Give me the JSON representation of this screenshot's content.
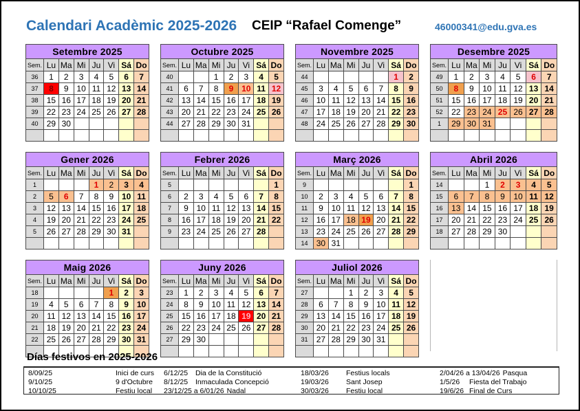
{
  "header": {
    "title": "Calendari Acadèmic 2025-2026",
    "school": "CEIP “Rafael Comenge”",
    "email": "46000341@edu.gva.es"
  },
  "colors": {
    "accent_blue": "#2E74B5",
    "month_header_bg": "#CC99FF",
    "week_col_bg": "#DBDBDB",
    "saturday_bg": "#FFFFCC",
    "sunday_bg": "#FBD5B4",
    "vacation_bg": "#FAC090",
    "festiu_bg": "#F0A04E",
    "pink_bg": "#F6C3CC",
    "red_bg": "#FF0000",
    "red_text": "#E00000",
    "dark_red_text": "#800000",
    "pink_text": "#FFB3C0"
  },
  "day_headers": [
    "Sem.",
    "Lu",
    "Ma",
    "Mi",
    "Ju",
    "Vi",
    "Sá",
    "Do"
  ],
  "months": [
    {
      "title": "Setembre 2025",
      "weeks": [
        {
          "sem": "36",
          "days": [
            "1",
            "2",
            "3",
            "4",
            "5",
            "6",
            "7"
          ]
        },
        {
          "sem": "37",
          "days": [
            {
              "t": "8",
              "bg": "red",
              "fg": "darkred"
            },
            "9",
            "10",
            "11",
            "12",
            "13",
            "14"
          ]
        },
        {
          "sem": "38",
          "days": [
            "15",
            "16",
            "17",
            "18",
            "19",
            "20",
            "21"
          ]
        },
        {
          "sem": "39",
          "days": [
            "22",
            "23",
            "24",
            "25",
            "26",
            "27",
            "28"
          ]
        },
        {
          "sem": "40",
          "days": [
            "29",
            "30",
            "",
            "",
            "",
            "",
            ""
          ]
        },
        {
          "sem": "",
          "days": [
            "",
            "",
            "",
            "",
            "",
            "",
            ""
          ]
        }
      ]
    },
    {
      "title": "Octubre 2025",
      "weeks": [
        {
          "sem": "40",
          "days": [
            "",
            "",
            "1",
            "2",
            "3",
            "4",
            "5"
          ]
        },
        {
          "sem": "41",
          "days": [
            "6",
            "7",
            "8",
            {
              "t": "9",
              "bg": "fest",
              "fg": "red"
            },
            {
              "t": "10",
              "bg": "vac",
              "fg": "red"
            },
            "11",
            {
              "t": "12",
              "bg": "pink",
              "fg": "red"
            }
          ]
        },
        {
          "sem": "42",
          "days": [
            "13",
            "14",
            "15",
            "16",
            "17",
            "18",
            "19"
          ]
        },
        {
          "sem": "43",
          "days": [
            "20",
            "21",
            "22",
            "23",
            "24",
            "25",
            "26"
          ]
        },
        {
          "sem": "44",
          "days": [
            "27",
            "28",
            "29",
            "30",
            "31",
            "",
            ""
          ]
        },
        {
          "sem": "",
          "days": [
            "",
            "",
            "",
            "",
            "",
            "",
            ""
          ]
        }
      ]
    },
    {
      "title": "Novembre 2025",
      "weeks": [
        {
          "sem": "44",
          "days": [
            "",
            "",
            "",
            "",
            "",
            {
              "t": "1",
              "bg": "pink",
              "fg": "red"
            },
            "2"
          ]
        },
        {
          "sem": "45",
          "days": [
            "3",
            "4",
            "5",
            "6",
            "7",
            "8",
            "9"
          ]
        },
        {
          "sem": "46",
          "days": [
            "10",
            "11",
            "12",
            "13",
            "14",
            "15",
            "16"
          ]
        },
        {
          "sem": "47",
          "days": [
            "17",
            "18",
            "19",
            "20",
            "21",
            "22",
            "23"
          ]
        },
        {
          "sem": "48",
          "days": [
            "24",
            "25",
            "26",
            "27",
            "28",
            "29",
            "30"
          ]
        },
        {
          "sem": "",
          "days": [
            "",
            "",
            "",
            "",
            "",
            "",
            ""
          ]
        }
      ]
    },
    {
      "title": "Desembre 2025",
      "weeks": [
        {
          "sem": "49",
          "days": [
            "1",
            "2",
            "3",
            "4",
            "5",
            {
              "t": "6",
              "bg": "pink",
              "fg": "red"
            },
            "7"
          ]
        },
        {
          "sem": "50",
          "days": [
            {
              "t": "8",
              "bg": "fest",
              "fg": "red"
            },
            "9",
            "10",
            "11",
            "12",
            "13",
            "14"
          ]
        },
        {
          "sem": "51",
          "days": [
            "15",
            "16",
            "17",
            "18",
            "19",
            "20",
            "21"
          ]
        },
        {
          "sem": "52",
          "days": [
            "22",
            {
              "t": "23",
              "bg": "vac"
            },
            {
              "t": "24",
              "bg": "vac"
            },
            {
              "t": "25",
              "bg": "vac",
              "fg": "red"
            },
            {
              "t": "26",
              "bg": "vac"
            },
            {
              "t": "27",
              "bg": "vac"
            },
            {
              "t": "28",
              "bg": "vac"
            }
          ]
        },
        {
          "sem": "1",
          "days": [
            {
              "t": "29",
              "bg": "vac"
            },
            {
              "t": "30",
              "bg": "vac"
            },
            {
              "t": "31",
              "bg": "vac"
            },
            "",
            "",
            "",
            ""
          ]
        },
        {
          "sem": "",
          "days": [
            "",
            "",
            "",
            "",
            "",
            "",
            ""
          ]
        }
      ]
    },
    {
      "title": "Gener 2026",
      "weeks": [
        {
          "sem": "1",
          "days": [
            "",
            "",
            "",
            {
              "t": "1",
              "bg": "vac",
              "fg": "red"
            },
            {
              "t": "2",
              "bg": "vac"
            },
            {
              "t": "3",
              "bg": "vac"
            },
            {
              "t": "4",
              "bg": "vac"
            }
          ]
        },
        {
          "sem": "2",
          "days": [
            {
              "t": "5",
              "bg": "vac"
            },
            {
              "t": "6",
              "bg": "vac",
              "fg": "red"
            },
            "7",
            "8",
            "9",
            "10",
            "11"
          ]
        },
        {
          "sem": "3",
          "days": [
            "12",
            "13",
            "14",
            "15",
            "16",
            "17",
            "18"
          ]
        },
        {
          "sem": "4",
          "days": [
            "19",
            "20",
            "21",
            "22",
            "23",
            "24",
            "25"
          ]
        },
        {
          "sem": "5",
          "days": [
            "26",
            "27",
            "28",
            "29",
            "30",
            "31",
            ""
          ]
        },
        {
          "sem": "",
          "days": [
            "",
            "",
            "",
            "",
            "",
            "",
            ""
          ]
        }
      ]
    },
    {
      "title": "Febrer 2026",
      "weeks": [
        {
          "sem": "5",
          "days": [
            "",
            "",
            "",
            "",
            "",
            "",
            "1"
          ]
        },
        {
          "sem": "6",
          "days": [
            "2",
            "3",
            "4",
            "5",
            "6",
            "7",
            "8"
          ]
        },
        {
          "sem": "7",
          "days": [
            "9",
            "10",
            "11",
            "12",
            "13",
            "14",
            "15"
          ]
        },
        {
          "sem": "8",
          "days": [
            "16",
            "17",
            "18",
            "19",
            "20",
            "21",
            "22"
          ]
        },
        {
          "sem": "9",
          "days": [
            "23",
            "24",
            "25",
            "26",
            "27",
            "28",
            ""
          ]
        },
        {
          "sem": "",
          "days": [
            "",
            "",
            "",
            "",
            "",
            "",
            ""
          ]
        }
      ]
    },
    {
      "title": "Març 2026",
      "weeks": [
        {
          "sem": "9",
          "days": [
            "",
            "",
            "",
            "",
            "",
            "",
            "1"
          ]
        },
        {
          "sem": "10",
          "days": [
            "2",
            "3",
            "4",
            "5",
            "6",
            "7",
            "8"
          ]
        },
        {
          "sem": "11",
          "days": [
            "9",
            "10",
            "11",
            "12",
            "13",
            "14",
            "15"
          ]
        },
        {
          "sem": "12",
          "days": [
            "16",
            "17",
            {
              "t": "18",
              "bg": "vac"
            },
            {
              "t": "19",
              "bg": "fest",
              "fg": "red"
            },
            "20",
            "21",
            "22"
          ]
        },
        {
          "sem": "13",
          "days": [
            "23",
            "24",
            "25",
            "26",
            "27",
            "28",
            "29"
          ]
        },
        {
          "sem": "14",
          "days": [
            {
              "t": "30",
              "bg": "vac"
            },
            "31",
            "",
            "",
            "",
            "",
            ""
          ]
        }
      ]
    },
    {
      "title": "Abril 2026",
      "weeks": [
        {
          "sem": "14",
          "days": [
            "",
            "",
            "1",
            {
              "t": "2",
              "bg": "vac",
              "fg": "red"
            },
            {
              "t": "3",
              "bg": "vac",
              "fg": "red"
            },
            {
              "t": "4",
              "bg": "vac"
            },
            {
              "t": "5",
              "bg": "vac"
            }
          ]
        },
        {
          "sem": "15",
          "days": [
            {
              "t": "6",
              "bg": "vac"
            },
            {
              "t": "7",
              "bg": "vac"
            },
            {
              "t": "8",
              "bg": "vac"
            },
            {
              "t": "9",
              "bg": "vac"
            },
            {
              "t": "10",
              "bg": "vac"
            },
            {
              "t": "11",
              "bg": "vac"
            },
            {
              "t": "12",
              "bg": "vac"
            }
          ]
        },
        {
          "sem": "16",
          "days": [
            {
              "t": "13",
              "bg": "vac"
            },
            "14",
            "15",
            "16",
            "17",
            "18",
            "19"
          ]
        },
        {
          "sem": "17",
          "days": [
            "20",
            "21",
            "22",
            "23",
            "24",
            "25",
            "26"
          ]
        },
        {
          "sem": "18",
          "days": [
            "27",
            "28",
            "29",
            "30",
            "",
            "",
            ""
          ]
        },
        {
          "sem": "",
          "days": [
            "",
            "",
            "",
            "",
            "",
            "",
            ""
          ]
        }
      ]
    },
    {
      "title": "Maig 2026",
      "weeks": [
        {
          "sem": "18",
          "days": [
            "",
            "",
            "",
            "",
            {
              "t": "1",
              "bg": "fest",
              "fg": "red"
            },
            "2",
            "3"
          ]
        },
        {
          "sem": "19",
          "days": [
            "4",
            "5",
            "6",
            "7",
            "8",
            "9",
            "10"
          ]
        },
        {
          "sem": "20",
          "days": [
            "11",
            "12",
            "13",
            "14",
            "15",
            "16",
            "17"
          ]
        },
        {
          "sem": "21",
          "days": [
            "18",
            "19",
            "20",
            "21",
            "22",
            "23",
            "24"
          ]
        },
        {
          "sem": "22",
          "days": [
            "25",
            "26",
            "27",
            "28",
            "29",
            "30",
            "31"
          ]
        },
        {
          "sem": "",
          "days": [
            "",
            "",
            "",
            "",
            "",
            "",
            ""
          ]
        }
      ]
    },
    {
      "title": "Juny 2026",
      "weeks": [
        {
          "sem": "23",
          "days": [
            "1",
            "2",
            "3",
            "4",
            "5",
            "6",
            "7"
          ]
        },
        {
          "sem": "24",
          "days": [
            "8",
            "9",
            "10",
            "11",
            "12",
            "13",
            "14"
          ]
        },
        {
          "sem": "25",
          "days": [
            "15",
            "16",
            "17",
            "18",
            {
              "t": "19",
              "bg": "red",
              "fg": "pink"
            },
            "20",
            "21"
          ]
        },
        {
          "sem": "26",
          "days": [
            "22",
            "23",
            "24",
            "25",
            "26",
            "27",
            "28"
          ]
        },
        {
          "sem": "27",
          "days": [
            "29",
            "30",
            "",
            "",
            "",
            "",
            ""
          ]
        },
        {
          "sem": "",
          "days": [
            "",
            "",
            "",
            "",
            "",
            "",
            ""
          ]
        }
      ]
    },
    {
      "title": "Juliol 2026",
      "weeks": [
        {
          "sem": "27",
          "days": [
            "",
            "",
            "1",
            "2",
            "3",
            "4",
            "5"
          ]
        },
        {
          "sem": "28",
          "days": [
            "6",
            "7",
            "8",
            "9",
            "10",
            "11",
            "12"
          ]
        },
        {
          "sem": "29",
          "days": [
            "13",
            "14",
            "15",
            "16",
            "17",
            "18",
            "19"
          ]
        },
        {
          "sem": "30",
          "days": [
            "20",
            "21",
            "22",
            "23",
            "24",
            "25",
            "26"
          ]
        },
        {
          "sem": "31",
          "days": [
            "27",
            "28",
            "29",
            "30",
            "31",
            "",
            ""
          ]
        },
        {
          "sem": "",
          "days": [
            "",
            "",
            "",
            "",
            "",
            "",
            ""
          ]
        }
      ]
    }
  ],
  "legend": {
    "title": "Días festivos en 2025-2026",
    "columns": [
      [
        [
          "8/09/25",
          "Inici de curs"
        ],
        [
          "9/10/25",
          "9 d'Octubre"
        ],
        [
          "10/10/25",
          "Festiu local"
        ]
      ],
      [
        [
          "6/12/25",
          "Dia de la Constitució"
        ],
        [
          "8/12/25",
          "Inmaculada Concepció"
        ],
        [
          "23/12/25 a 6/01/26",
          "Nadal"
        ]
      ],
      [
        [
          "18/03/26",
          "Festius locals"
        ],
        [
          "19/03/26",
          "Sant Josep"
        ],
        [
          "30/03/26",
          "Festiu local"
        ]
      ],
      [
        [
          "2/04/26 a 13/04/26",
          "Pasqua"
        ],
        [
          "1/5/26",
          "Fiesta del Trabajo"
        ],
        [
          "19/6/26",
          "Final de Curs"
        ]
      ]
    ]
  }
}
